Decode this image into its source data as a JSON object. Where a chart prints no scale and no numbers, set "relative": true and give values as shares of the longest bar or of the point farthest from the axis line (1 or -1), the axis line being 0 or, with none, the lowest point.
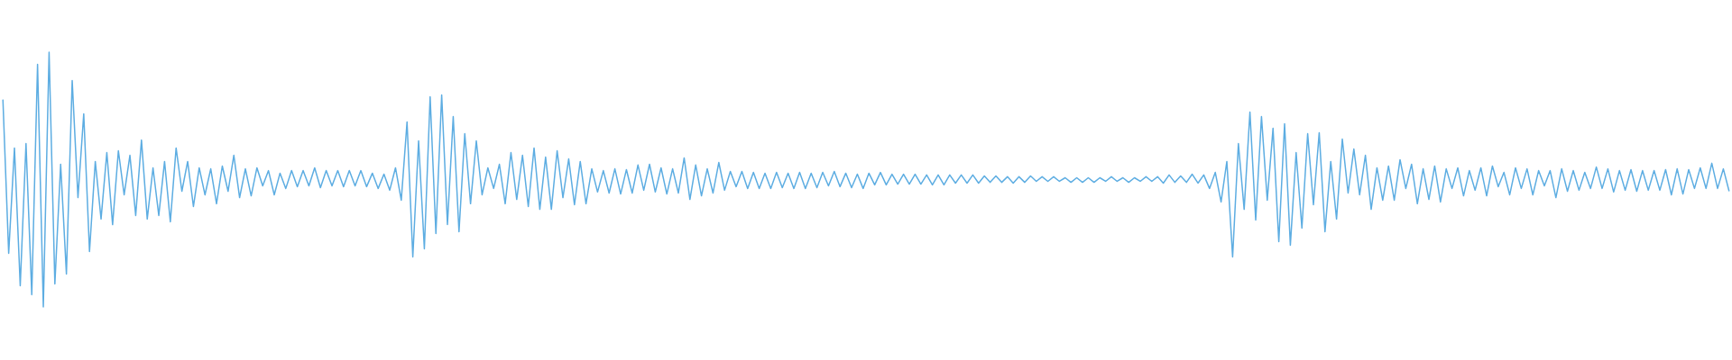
{
  "chart_data": {
    "type": "line",
    "relative": true,
    "color": "#5dade2",
    "categories": [
      null,
      null,
      null,
      null,
      null,
      null,
      null,
      null,
      null,
      null,
      null,
      null,
      null,
      null,
      null,
      null,
      null,
      null,
      null,
      null,
      null,
      null,
      null,
      null,
      null,
      null,
      null,
      null,
      null,
      null,
      null,
      null,
      null,
      null,
      null,
      null,
      null,
      null,
      null,
      null,
      null,
      null,
      null,
      null,
      null,
      null,
      null,
      null,
      null,
      null,
      null,
      null,
      null,
      null,
      null,
      null,
      null,
      null,
      null,
      null,
      null,
      null,
      null,
      null,
      null,
      null,
      null,
      null,
      null,
      null,
      null,
      null,
      null,
      null,
      null,
      null,
      null,
      null,
      null,
      null,
      null,
      null,
      null,
      null,
      null,
      null,
      null,
      null,
      null,
      null,
      null,
      null,
      null,
      null,
      null,
      null,
      null,
      null,
      null,
      null,
      null,
      null,
      null,
      null,
      null,
      null,
      null,
      null,
      null,
      null,
      null,
      null,
      null,
      null,
      null,
      null,
      null,
      null,
      null,
      null,
      null,
      null,
      null,
      null,
      null,
      null,
      null,
      null,
      null,
      null,
      null,
      null,
      null,
      null,
      null,
      null,
      null,
      null,
      null,
      null,
      null,
      null,
      null,
      null,
      null,
      null,
      null,
      null,
      null,
      null,
      null,
      null,
      null,
      null,
      null,
      null,
      null,
      null,
      null,
      null,
      null,
      null,
      null,
      null,
      null,
      null,
      null,
      null,
      null,
      null,
      null,
      null,
      null,
      null,
      null,
      null,
      null,
      null,
      null,
      null,
      null,
      null,
      null,
      null,
      null,
      null,
      null,
      null,
      null,
      null,
      null,
      null,
      null,
      null,
      null,
      null,
      null,
      null,
      null,
      null,
      null,
      null,
      null,
      null,
      null,
      null,
      null,
      null,
      null,
      null,
      null,
      null,
      null,
      null,
      null,
      null,
      null,
      null,
      null,
      null,
      null,
      null,
      null,
      null,
      null,
      null,
      null,
      null,
      null,
      null,
      null,
      null,
      null,
      null,
      null,
      null,
      null,
      null,
      null,
      null,
      null,
      null,
      null,
      null,
      null,
      null,
      null,
      null,
      null,
      null,
      null,
      null,
      null,
      null,
      null,
      null,
      null,
      null,
      null,
      null,
      null,
      null,
      null,
      null,
      null,
      null,
      null,
      null,
      null,
      null,
      null,
      null,
      null,
      null,
      null,
      null,
      null,
      null,
      null,
      null,
      null,
      null,
      null,
      null,
      null,
      null,
      null,
      null,
      null,
      null,
      null,
      null,
      null,
      null,
      null,
      null,
      null,
      null,
      null,
      null
    ],
    "values": [
      0.814,
      0.21,
      0.624,
      0.083,
      0.641,
      0.048,
      0.952,
      0,
      1,
      0.09,
      0.56,
      0.129,
      0.889,
      0.429,
      0.758,
      0.217,
      0.571,
      0.345,
      0.606,
      0.323,
      0.613,
      0.44,
      0.595,
      0.359,
      0.655,
      0.345,
      0.546,
      0.359,
      0.571,
      0.334,
      0.624,
      0.454,
      0.571,
      0.394,
      0.546,
      0.44,
      0.542,
      0.405,
      0.553,
      0.454,
      0.595,
      0.429,
      0.542,
      0.436,
      0.546,
      0.475,
      0.535,
      0.44,
      0.525,
      0.465,
      0.535,
      0.472,
      0.535,
      0.475,
      0.546,
      0.468,
      0.535,
      0.475,
      0.535,
      0.472,
      0.535,
      0.475,
      0.535,
      0.472,
      0.525,
      0.465,
      0.521,
      0.458,
      0.546,
      0.419,
      0.726,
      0.196,
      0.652,
      0.228,
      0.825,
      0.288,
      0.832,
      0.323,
      0.747,
      0.295,
      0.68,
      0.405,
      0.652,
      0.44,
      0.546,
      0.465,
      0.56,
      0.405,
      0.606,
      0.422,
      0.595,
      0.394,
      0.624,
      0.383,
      0.588,
      0.383,
      0.613,
      0.429,
      0.581,
      0.401,
      0.571,
      0.405,
      0.542,
      0.451,
      0.535,
      0.447,
      0.542,
      0.443,
      0.539,
      0.447,
      0.557,
      0.458,
      0.56,
      0.451,
      0.546,
      0.443,
      0.542,
      0.447,
      0.585,
      0.422,
      0.557,
      0.436,
      0.542,
      0.447,
      0.567,
      0.458,
      0.532,
      0.472,
      0.532,
      0.465,
      0.528,
      0.465,
      0.525,
      0.465,
      0.528,
      0.468,
      0.525,
      0.465,
      0.528,
      0.465,
      0.525,
      0.468,
      0.528,
      0.475,
      0.532,
      0.472,
      0.525,
      0.468,
      0.521,
      0.465,
      0.525,
      0.479,
      0.528,
      0.479,
      0.521,
      0.482,
      0.521,
      0.482,
      0.521,
      0.482,
      0.518,
      0.479,
      0.518,
      0.479,
      0.518,
      0.486,
      0.518,
      0.486,
      0.518,
      0.486,
      0.514,
      0.489,
      0.514,
      0.489,
      0.511,
      0.486,
      0.511,
      0.489,
      0.514,
      0.493,
      0.511,
      0.493,
      0.511,
      0.493,
      0.507,
      0.489,
      0.507,
      0.489,
      0.507,
      0.489,
      0.507,
      0.493,
      0.511,
      0.493,
      0.507,
      0.489,
      0.507,
      0.493,
      0.511,
      0.493,
      0.511,
      0.486,
      0.518,
      0.489,
      0.514,
      0.489,
      0.521,
      0.486,
      0.518,
      0.465,
      0.528,
      0.412,
      0.571,
      0.196,
      0.641,
      0.383,
      0.765,
      0.341,
      0.747,
      0.419,
      0.701,
      0.256,
      0.719,
      0.242,
      0.606,
      0.309,
      0.68,
      0.401,
      0.684,
      0.295,
      0.571,
      0.345,
      0.659,
      0.447,
      0.62,
      0.44,
      0.595,
      0.383,
      0.546,
      0.419,
      0.553,
      0.419,
      0.578,
      0.465,
      0.56,
      0.405,
      0.542,
      0.422,
      0.553,
      0.412,
      0.542,
      0.465,
      0.546,
      0.436,
      0.535,
      0.458,
      0.546,
      0.436,
      0.553,
      0.472,
      0.528,
      0.44,
      0.546,
      0.465,
      0.542,
      0.44,
      0.535,
      0.475,
      0.535,
      0.429,
      0.542,
      0.454,
      0.535,
      0.458,
      0.528,
      0.465,
      0.549,
      0.465,
      0.542,
      0.451,
      0.535,
      0.458,
      0.539,
      0.454,
      0.535,
      0.458,
      0.535,
      0.458,
      0.539,
      0.44,
      0.542,
      0.443,
      0.539,
      0.465,
      0.546,
      0.465,
      0.564,
      0.465,
      0.542,
      0.454
    ]
  }
}
